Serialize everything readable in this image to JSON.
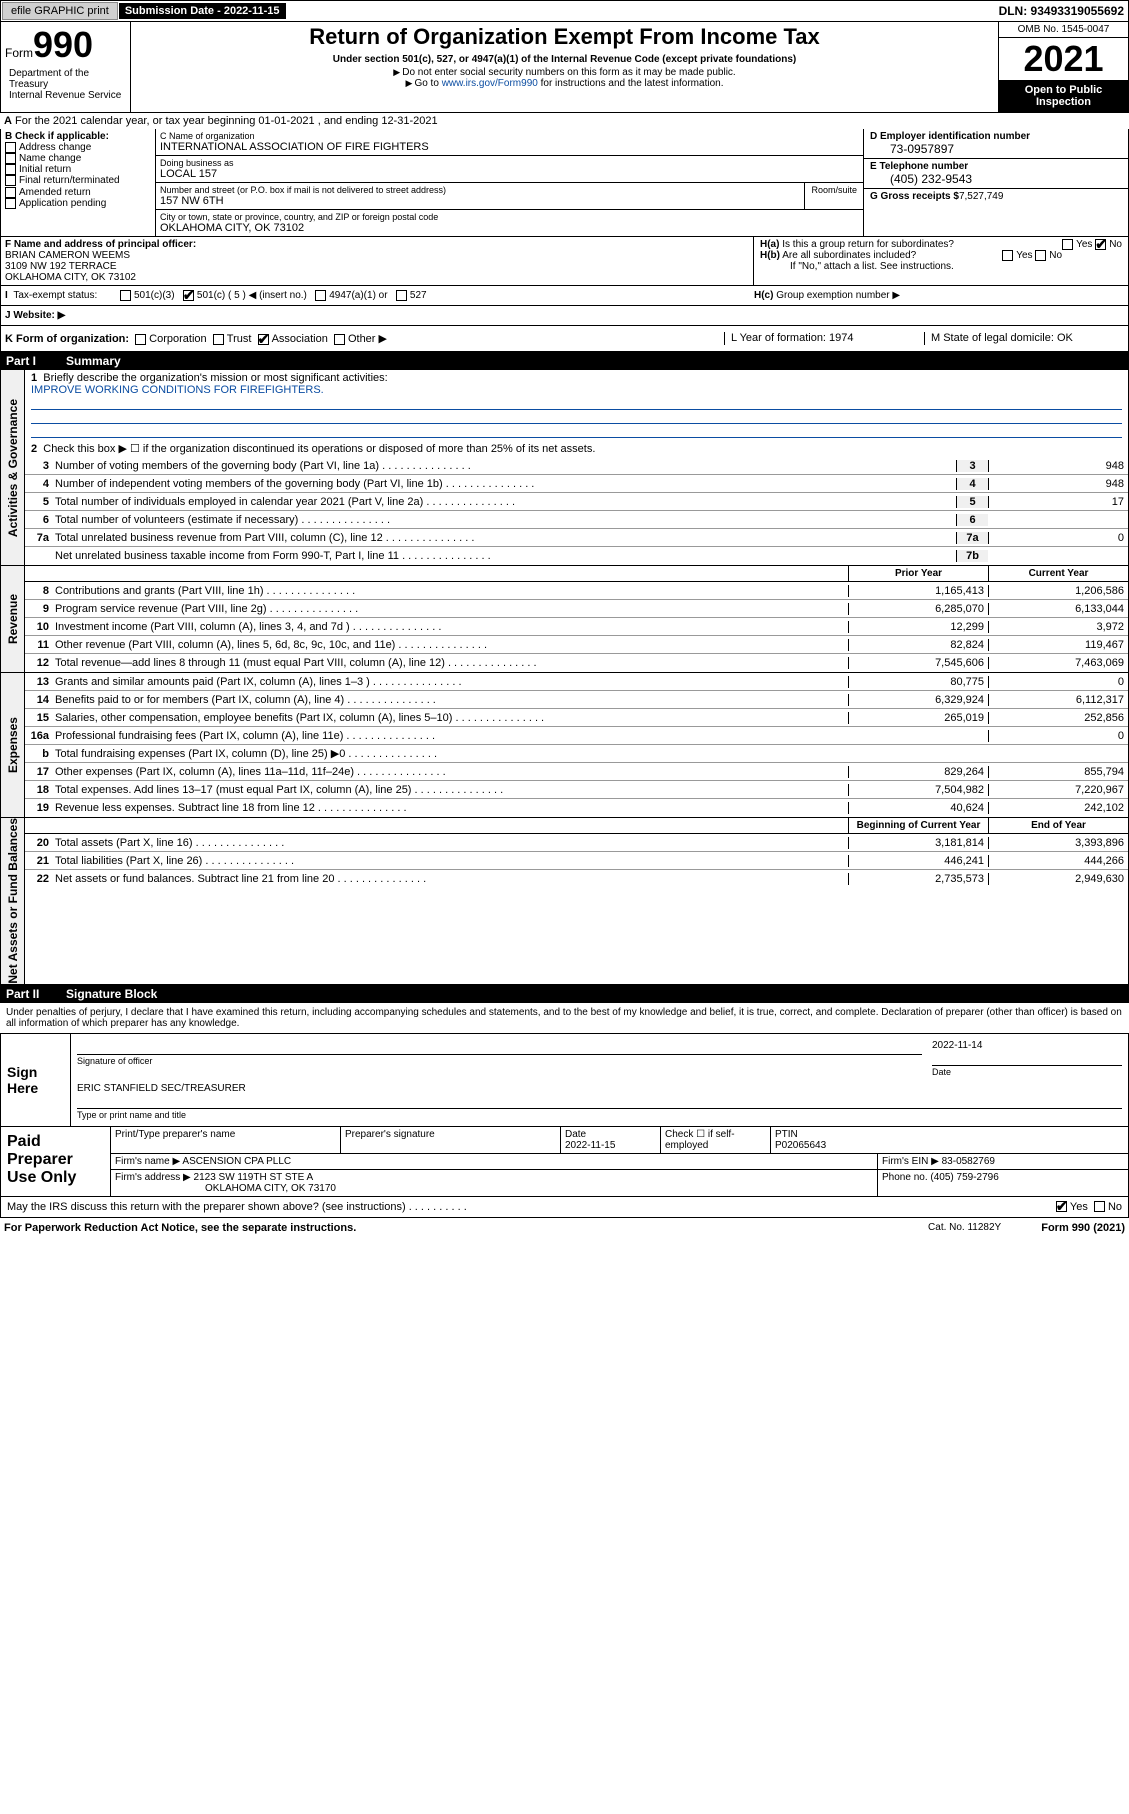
{
  "topbar": {
    "efile_label": "efile GRAPHIC print",
    "sub_date_label": "Submission Date - 2022-11-15",
    "dln_label": "DLN: 93493319055692"
  },
  "header": {
    "form_label": "Form",
    "form_num": "990",
    "title": "Return of Organization Exempt From Income Tax",
    "subtitle": "Under section 501(c), 527, or 4947(a)(1) of the Internal Revenue Code (except private foundations)",
    "instr1": "Do not enter social security numbers on this form as it may be made public.",
    "instr2_pre": "Go to ",
    "instr2_link": "www.irs.gov/Form990",
    "instr2_post": " for instructions and the latest information.",
    "omb": "OMB No. 1545-0047",
    "year": "2021",
    "open": "Open to Public Inspection",
    "dept": "Department of the Treasury\nInternal Revenue Service"
  },
  "line_a": "For the 2021 calendar year, or tax year beginning 01-01-2021  , and ending 12-31-2021",
  "box_b": {
    "label": "B Check if applicable:",
    "items": [
      "Address change",
      "Name change",
      "Initial return",
      "Final return/terminated",
      "Amended return",
      "Application pending"
    ]
  },
  "box_c": {
    "name_lbl": "C Name of organization",
    "name": "INTERNATIONAL ASSOCIATION OF FIRE FIGHTERS",
    "dba_lbl": "Doing business as",
    "dba": "LOCAL 157",
    "street_lbl": "Number and street (or P.O. box if mail is not delivered to street address)",
    "street": "157 NW 6TH",
    "room_lbl": "Room/suite",
    "city_lbl": "City or town, state or province, country, and ZIP or foreign postal code",
    "city": "OKLAHOMA CITY, OK  73102"
  },
  "box_d": {
    "ein_lbl": "D Employer identification number",
    "ein": "73-0957897",
    "tel_lbl": "E Telephone number",
    "tel": "(405) 232-9543",
    "gross_lbl": "G Gross receipts $",
    "gross": "7,527,749"
  },
  "box_f": {
    "lbl": "F Name and address of principal officer:",
    "name": "BRIAN CAMERON WEEMS",
    "addr": "3109 NW 192 TERRACE\nOKLAHOMA CITY, OK  73102"
  },
  "box_h": {
    "a_lbl": "H(a)  Is this a group return for subordinates?",
    "b_lbl": "H(b)  Are all subordinates included?",
    "b_note": "If \"No,\" attach a list. See instructions.",
    "c_lbl": "H(c)  Group exemption number",
    "yes": "Yes",
    "no": "No"
  },
  "tax_status": {
    "lbl": "Tax-exempt status:",
    "opts": [
      "501(c)(3)",
      "501(c) ( 5 ) ◀ (insert no.)",
      "4947(a)(1) or",
      "527"
    ]
  },
  "website_lbl": "J   Website: ▶",
  "k_row": {
    "lbl": "K Form of organization:",
    "opts": [
      "Corporation",
      "Trust",
      "Association",
      "Other ▶"
    ],
    "year_lbl": "L Year of formation: 1974",
    "state_lbl": "M State of legal domicile: OK"
  },
  "part1": {
    "num": "Part I",
    "title": "Summary"
  },
  "summary": {
    "line1_lbl": "Briefly describe the organization's mission or most significant activities:",
    "line1_val": "IMPROVE WORKING CONDITIONS FOR FIREFIGHTERS.",
    "line2": "Check this box ▶ ☐  if the organization discontinued its operations or disposed of more than 25% of its net assets.",
    "rows": [
      {
        "n": "3",
        "d": "Number of voting members of the governing body (Part VI, line 1a)",
        "c": "3",
        "v": "948"
      },
      {
        "n": "4",
        "d": "Number of independent voting members of the governing body (Part VI, line 1b)",
        "c": "4",
        "v": "948"
      },
      {
        "n": "5",
        "d": "Total number of individuals employed in calendar year 2021 (Part V, line 2a)",
        "c": "5",
        "v": "17"
      },
      {
        "n": "6",
        "d": "Total number of volunteers (estimate if necessary)",
        "c": "6",
        "v": ""
      },
      {
        "n": "7a",
        "d": "Total unrelated business revenue from Part VIII, column (C), line 12",
        "c": "7a",
        "v": "0"
      },
      {
        "n": "",
        "d": "Net unrelated business taxable income from Form 990-T, Part I, line 11",
        "c": "7b",
        "v": ""
      }
    ]
  },
  "prior_lbl": "Prior Year",
  "current_lbl": "Current Year",
  "begin_lbl": "Beginning of Current Year",
  "end_lbl": "End of Year",
  "revenue": [
    {
      "n": "8",
      "d": "Contributions and grants (Part VIII, line 1h)",
      "p": "1,165,413",
      "c": "1,206,586"
    },
    {
      "n": "9",
      "d": "Program service revenue (Part VIII, line 2g)",
      "p": "6,285,070",
      "c": "6,133,044"
    },
    {
      "n": "10",
      "d": "Investment income (Part VIII, column (A), lines 3, 4, and 7d )",
      "p": "12,299",
      "c": "3,972"
    },
    {
      "n": "11",
      "d": "Other revenue (Part VIII, column (A), lines 5, 6d, 8c, 9c, 10c, and 11e)",
      "p": "82,824",
      "c": "119,467"
    },
    {
      "n": "12",
      "d": "Total revenue—add lines 8 through 11 (must equal Part VIII, column (A), line 12)",
      "p": "7,545,606",
      "c": "7,463,069"
    }
  ],
  "expenses": [
    {
      "n": "13",
      "d": "Grants and similar amounts paid (Part IX, column (A), lines 1–3 )",
      "p": "80,775",
      "c": "0"
    },
    {
      "n": "14",
      "d": "Benefits paid to or for members (Part IX, column (A), line 4)",
      "p": "6,329,924",
      "c": "6,112,317"
    },
    {
      "n": "15",
      "d": "Salaries, other compensation, employee benefits (Part IX, column (A), lines 5–10)",
      "p": "265,019",
      "c": "252,856"
    },
    {
      "n": "16a",
      "d": "Professional fundraising fees (Part IX, column (A), line 11e)",
      "p": "",
      "c": "0"
    },
    {
      "n": "b",
      "d": "Total fundraising expenses (Part IX, column (D), line 25) ▶0",
      "p": "—",
      "c": "—"
    },
    {
      "n": "17",
      "d": "Other expenses (Part IX, column (A), lines 11a–11d, 11f–24e)",
      "p": "829,264",
      "c": "855,794"
    },
    {
      "n": "18",
      "d": "Total expenses. Add lines 13–17 (must equal Part IX, column (A), line 25)",
      "p": "7,504,982",
      "c": "7,220,967"
    },
    {
      "n": "19",
      "d": "Revenue less expenses. Subtract line 18 from line 12",
      "p": "40,624",
      "c": "242,102"
    }
  ],
  "netassets": [
    {
      "n": "20",
      "d": "Total assets (Part X, line 16)",
      "p": "3,181,814",
      "c": "3,393,896"
    },
    {
      "n": "21",
      "d": "Total liabilities (Part X, line 26)",
      "p": "446,241",
      "c": "444,266"
    },
    {
      "n": "22",
      "d": "Net assets or fund balances. Subtract line 21 from line 20",
      "p": "2,735,573",
      "c": "2,949,630"
    }
  ],
  "side_labels": {
    "gov": "Activities & Governance",
    "rev": "Revenue",
    "exp": "Expenses",
    "net": "Net Assets or Fund Balances"
  },
  "part2": {
    "num": "Part II",
    "title": "Signature Block"
  },
  "sig": {
    "decl": "Under penalties of perjury, I declare that I have examined this return, including accompanying schedules and statements, and to the best of my knowledge and belief, it is true, correct, and complete. Declaration of preparer (other than officer) is based on all information of which preparer has any knowledge.",
    "sign_here": "Sign Here",
    "sig_lbl": "Signature of officer",
    "date_lbl": "Date",
    "date_val": "2022-11-14",
    "name": "ERIC STANFIELD  SEC/TREASURER",
    "name_lbl": "Type or print name and title"
  },
  "paid": {
    "lbl": "Paid Preparer Use Only",
    "r1": {
      "c1_lbl": "Print/Type preparer's name",
      "c2_lbl": "Preparer's signature",
      "c3_lbl": "Date",
      "c3_val": "2022-11-15",
      "c4_lbl": "Check ☐ if self-employed",
      "c5_lbl": "PTIN",
      "c5_val": "P02065643"
    },
    "r2": {
      "firm_lbl": "Firm's name    ▶",
      "firm": "ASCENSION CPA PLLC",
      "ein_lbl": "Firm's EIN ▶",
      "ein": "83-0582769"
    },
    "r3": {
      "addr_lbl": "Firm's address ▶",
      "addr": "2123 SW 119TH ST STE A",
      "city": "OKLAHOMA CITY, OK  73170",
      "ph_lbl": "Phone no.",
      "ph": "(405) 759-2796"
    }
  },
  "discuss": "May the IRS discuss this return with the preparer shown above? (see instructions)",
  "footer": {
    "left": "For Paperwork Reduction Act Notice, see the separate instructions.",
    "mid": "Cat. No. 11282Y",
    "right": "Form 990 (2021)"
  }
}
